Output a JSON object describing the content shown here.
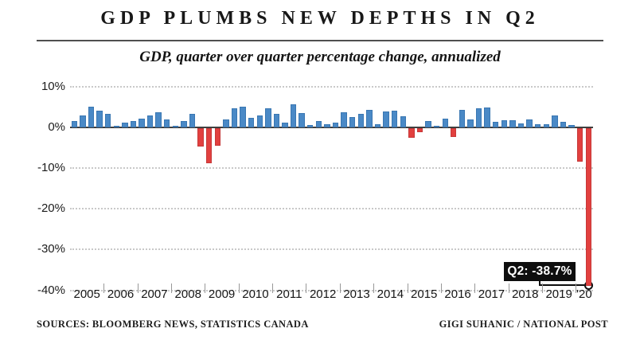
{
  "title": "GDP PLUMBS NEW DEPTHS IN Q2",
  "subtitle": "GDP, quarter over quarter percentage change, annualized",
  "footer": {
    "sources": "SOURCES: BLOOMBERG NEWS, STATISTICS CANADA",
    "credit": "GIGI SUHANIC / NATIONAL POST"
  },
  "colors": {
    "positive_bar": "#4a89c6",
    "negative_bar": "#e2403f",
    "zero_line": "#3f3f3f",
    "gridline": "#c9c9c9",
    "annotation_bg": "#0e0e0e",
    "annotation_text": "#ffffff"
  },
  "chart_data": {
    "type": "bar",
    "title": "GDP PLUMBS NEW DEPTHS IN Q2",
    "subtitle": "GDP, quarter over quarter percentage change, annualized",
    "unit": "percent, annualized quarter-over-quarter change",
    "grid": "horizontal dotted",
    "legend_position": "none",
    "ylim": [
      -40,
      10
    ],
    "ytick_labels": [
      "10%",
      "0%",
      "-10%",
      "-20%",
      "-30%",
      "-40%"
    ],
    "ytick_values": [
      10,
      0,
      -10,
      -20,
      -30,
      -40
    ],
    "x_year_labels": [
      "2005",
      "2006",
      "2007",
      "2008",
      "2009",
      "2010",
      "2011",
      "2012",
      "2013",
      "2014",
      "2015",
      "2016",
      "2017",
      "2018",
      "2019",
      "'20"
    ],
    "series": [
      {
        "year": "2005",
        "values": [
          1.6,
          2.9,
          5.0,
          4.1
        ]
      },
      {
        "year": "2006",
        "values": [
          3.2,
          0.3,
          1.1,
          1.5
        ]
      },
      {
        "year": "2007",
        "values": [
          2.1,
          2.8,
          3.7,
          1.8
        ]
      },
      {
        "year": "2008",
        "values": [
          0.4,
          1.5,
          3.2,
          -4.6
        ]
      },
      {
        "year": "2009",
        "values": [
          -8.7,
          -4.4,
          1.8,
          4.7
        ]
      },
      {
        "year": "2010",
        "values": [
          5.1,
          2.2,
          2.9,
          4.6
        ]
      },
      {
        "year": "2011",
        "values": [
          3.2,
          1.2,
          5.6,
          3.4
        ]
      },
      {
        "year": "2012",
        "values": [
          0.5,
          1.5,
          0.8,
          1.1
        ]
      },
      {
        "year": "2013",
        "values": [
          3.7,
          2.4,
          3.2,
          4.2
        ]
      },
      {
        "year": "2014",
        "values": [
          0.7,
          3.8,
          4.1,
          2.7
        ]
      },
      {
        "year": "2015",
        "values": [
          -2.4,
          -1.1,
          1.5,
          0.3
        ]
      },
      {
        "year": "2016",
        "values": [
          2.1,
          -2.3,
          4.2,
          1.9
        ]
      },
      {
        "year": "2017",
        "values": [
          4.6,
          4.8,
          1.4,
          1.7
        ]
      },
      {
        "year": "2018",
        "values": [
          1.7,
          1.0,
          1.9,
          0.8
        ]
      },
      {
        "year": "2019",
        "values": [
          0.8,
          2.8,
          1.3,
          0.6
        ]
      },
      {
        "year": "2020",
        "values": [
          -8.2,
          -38.7
        ]
      }
    ],
    "annotation": {
      "label": "Q2: -38.7%",
      "target": "2020 Q2",
      "value": -38.7
    }
  }
}
